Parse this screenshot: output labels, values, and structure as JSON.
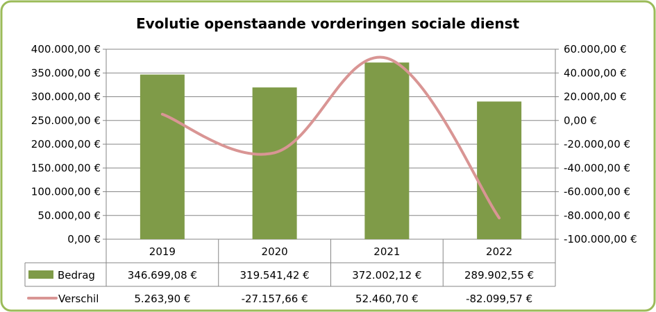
{
  "chart_data": {
    "type": "bar",
    "title": "Evolutie openstaande vorderingen sociale dienst",
    "categories": [
      "2019",
      "2020",
      "2021",
      "2022"
    ],
    "series": [
      {
        "name": "Bedrag",
        "type": "bar",
        "axis": "left",
        "color": "#7f9b48",
        "values": [
          346699.08,
          319541.42,
          372002.12,
          289902.55
        ],
        "labels": [
          "346.699,08 €",
          "319.541,42 €",
          "372.002,12 €",
          "289.902,55 €"
        ]
      },
      {
        "name": "Verschil",
        "type": "line",
        "axis": "right",
        "color": "#d99594",
        "values": [
          5263.9,
          -27157.66,
          52460.7,
          -82099.57
        ],
        "labels": [
          "5.263,90 €",
          "-27.157,66 €",
          "52.460,70 €",
          "-82.099,57 €"
        ]
      }
    ],
    "y_left": {
      "ylim": [
        0,
        400000
      ],
      "ticks": [
        0,
        50000,
        100000,
        150000,
        200000,
        250000,
        300000,
        350000,
        400000
      ],
      "tick_labels": [
        "0,00 €",
        "50.000,00 €",
        "100.000,00 €",
        "150.000,00 €",
        "200.000,00 €",
        "250.000,00 €",
        "300.000,00 €",
        "350.000,00 €",
        "400.000,00 €"
      ]
    },
    "y_right": {
      "ylim": [
        -100000,
        60000
      ],
      "ticks": [
        -100000,
        -80000,
        -60000,
        -40000,
        -20000,
        0,
        20000,
        40000,
        60000
      ],
      "tick_labels": [
        "-100.000,00 €",
        "-80.000,00 €",
        "-60.000,00 €",
        "-40.000,00 €",
        "-20.000,00 €",
        "0,00 €",
        "20.000,00 €",
        "40.000,00 €",
        "60.000,00 €"
      ]
    },
    "grid": true,
    "legend": "data-table",
    "frame_color": "#9bbb59"
  }
}
